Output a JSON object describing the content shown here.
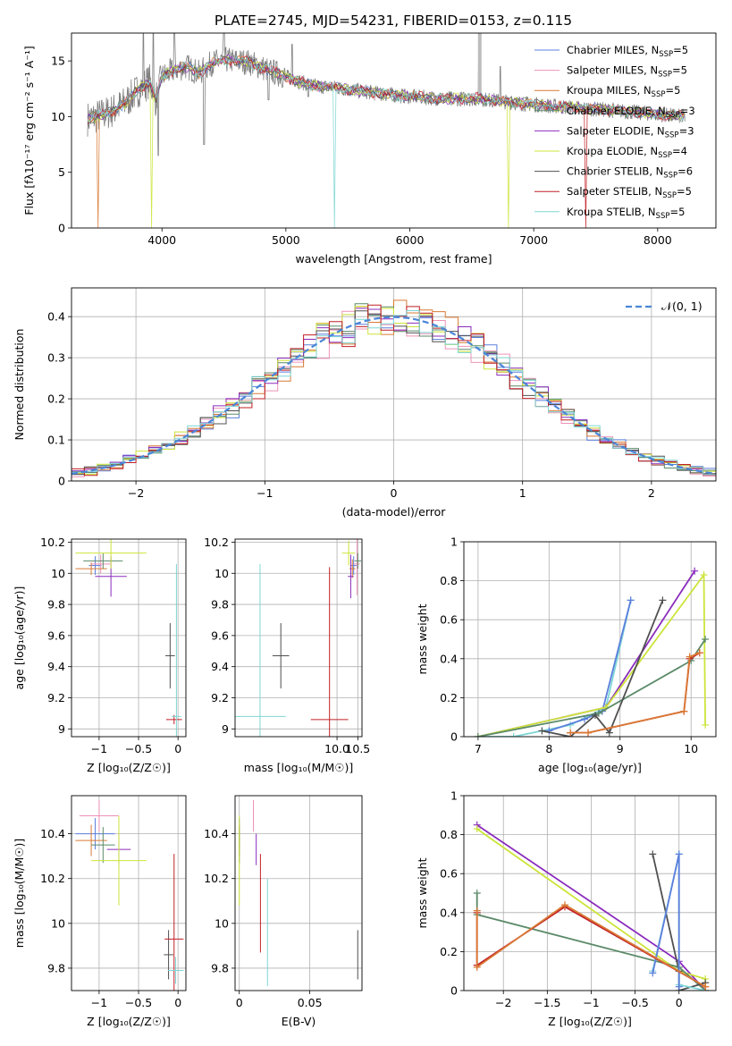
{
  "figure_title": "PLATE=2745, MJD=54231, FIBERID=0153, z=0.115",
  "colors": {
    "grey": "#808080",
    "lightgrey": "#bdbdbd",
    "chabrier_miles": "#5b7fdc",
    "salpeter_miles": "#ee92b8",
    "kroupa_miles": "#d97a35",
    "chabrier_elodie": "#5b8a68",
    "salpeter_elodie": "#8b2cbd",
    "kroupa_elodie": "#cde43a",
    "chabrier_stelib": "#505050",
    "salpeter_stelib": "#c21f26",
    "kroupa_stelib": "#7fd6d6",
    "normal": "#4a86d8"
  },
  "chart_data": [
    {
      "type": "line",
      "id": "spectrum",
      "title": "PLATE=2745, MJD=54231, FIBERID=0153, z=0.115",
      "xlabel": "wavelength [Angstrom, rest frame]",
      "ylabel": "Flux [fλ10⁻¹⁷ erg cm⁻² s⁻¹ A⁻¹]",
      "xlim": [
        3270,
        8470
      ],
      "ylim": [
        0,
        17.5
      ],
      "xticks": [
        4000,
        5000,
        6000,
        7000,
        8000
      ],
      "yticks": [
        0,
        5,
        10,
        15
      ],
      "grid": false,
      "legend_position": "top-right",
      "series": [
        {
          "name": "Chabrier MILES, N_SSP=5",
          "color": "chabrier_miles"
        },
        {
          "name": "Salpeter MILES, N_SSP=5",
          "color": "salpeter_miles"
        },
        {
          "name": "Kroupa MILES, N_SSP=5",
          "color": "kroupa_miles"
        },
        {
          "name": "Chabrier ELODIE, N_SSP=3",
          "color": "chabrier_elodie"
        },
        {
          "name": "Salpeter ELODIE, N_SSP=3",
          "color": "salpeter_elodie"
        },
        {
          "name": "Kroupa ELODIE, N_SSP=4",
          "color": "kroupa_elodie"
        },
        {
          "name": "Chabrier STELIB, N_SSP=6",
          "color": "chabrier_stelib"
        },
        {
          "name": "Salpeter STELIB, N_SSP=5",
          "color": "salpeter_stelib"
        },
        {
          "name": "Kroupa STELIB, N_SSP=5",
          "color": "kroupa_stelib"
        }
      ],
      "model_continuum": [
        [
          3400,
          9.8
        ],
        [
          3500,
          10.1
        ],
        [
          3600,
          10.5
        ],
        [
          3700,
          11.2
        ],
        [
          3800,
          12.3
        ],
        [
          3900,
          13.2
        ],
        [
          3950,
          11.5
        ],
        [
          4000,
          13.6
        ],
        [
          4100,
          14.2
        ],
        [
          4200,
          14.5
        ],
        [
          4300,
          13.9
        ],
        [
          4400,
          14.8
        ],
        [
          4500,
          15.1
        ],
        [
          4700,
          14.9
        ],
        [
          4850,
          14.2
        ],
        [
          5000,
          13.6
        ],
        [
          5200,
          12.8
        ],
        [
          5400,
          12.6
        ],
        [
          5600,
          12.3
        ],
        [
          5800,
          12.0
        ],
        [
          6000,
          11.8
        ],
        [
          6300,
          11.6
        ],
        [
          6560,
          11.6
        ],
        [
          6800,
          11.3
        ],
        [
          7200,
          10.9
        ],
        [
          7600,
          10.6
        ],
        [
          8000,
          10.2
        ],
        [
          8220,
          10.0
        ]
      ],
      "data_dips": [
        [
          3930,
          3.0
        ],
        [
          3970,
          6.5
        ],
        [
          4340,
          7.5
        ],
        [
          4860,
          11.5
        ],
        [
          5180,
          11.8
        ]
      ],
      "data_spikes": [
        [
          3850,
          17.5
        ],
        [
          3930,
          17.5
        ],
        [
          4100,
          17.5
        ],
        [
          4500,
          17.5
        ],
        [
          5050,
          16.5
        ],
        [
          6560,
          17.5
        ],
        [
          6730,
          14.5
        ]
      ],
      "model_drops": [
        [
          3480,
          "kroupa_miles"
        ],
        [
          3920,
          "kroupa_elodie"
        ],
        [
          5390,
          "kroupa_stelib"
        ],
        [
          6800,
          "kroupa_elodie"
        ],
        [
          7420,
          "salpeter_stelib"
        ]
      ]
    },
    {
      "type": "line",
      "id": "residuals",
      "xlabel": "(data-model)/error",
      "ylabel": "Normed distribution",
      "xlim": [
        -2.5,
        2.5
      ],
      "ylim": [
        0,
        0.47
      ],
      "xticks": [
        -2,
        -1,
        0,
        1,
        2
      ],
      "yticks": [
        0.0,
        0.1,
        0.2,
        0.3,
        0.4
      ],
      "grid": true,
      "legend_position": "top-right",
      "legend_label": "𝒩(0, 1)",
      "bins": 50,
      "jitter_colors": [
        "chabrier_miles",
        "salpeter_miles",
        "kroupa_miles",
        "chabrier_elodie",
        "salpeter_elodie",
        "kroupa_elodie",
        "chabrier_stelib",
        "salpeter_stelib",
        "kroupa_stelib"
      ]
    },
    {
      "type": "scatter",
      "id": "z-vs-age",
      "xlabel": "Z [log₁₀(Z/Z☉)]",
      "ylabel": "age [log₁₀(age/yr)]",
      "xlim": [
        -1.35,
        0.1
      ],
      "ylim": [
        8.95,
        10.22
      ],
      "xticks": [
        -1.0,
        -0.5,
        0.0
      ],
      "yticks": [
        9.0,
        9.2,
        9.4,
        9.6,
        9.8,
        10.0,
        10.2
      ],
      "grid": true,
      "points": [
        {
          "color": "chabrier_miles",
          "x": -1.05,
          "y": 10.05,
          "xerr": 0.08,
          "yerr": 0.06
        },
        {
          "color": "salpeter_miles",
          "x": -0.98,
          "y": 10.06,
          "xerr": 0.12,
          "yerr": 0.06
        },
        {
          "color": "kroupa_miles",
          "x": -1.1,
          "y": 10.03,
          "xerr": 0.2,
          "yerr": 0.04
        },
        {
          "color": "chabrier_elodie",
          "x": -0.95,
          "y": 10.08,
          "xerr": 0.25,
          "yerr": 0.05
        },
        {
          "color": "salpeter_elodie",
          "x": -0.85,
          "y": 9.98,
          "xerr": 0.2,
          "yerr": 0.13
        },
        {
          "color": "kroupa_elodie",
          "x": -0.85,
          "y": 10.13,
          "xerr": 0.45,
          "yerr": 0.1
        },
        {
          "color": "chabrier_stelib",
          "x": -0.1,
          "y": 9.47,
          "xerr": 0.06,
          "yerr": 0.21
        },
        {
          "color": "salpeter_stelib",
          "x": -0.05,
          "y": 9.06,
          "xerr": 0.1,
          "yerr": 0.03
        },
        {
          "color": "kroupa_stelib",
          "x": -0.02,
          "y": 9.08,
          "xerr": 0.06,
          "yerr": 0.98
        }
      ]
    },
    {
      "type": "scatter",
      "id": "mass-vs-age",
      "xlabel": "mass [log₁₀(M/M☉)]",
      "ylabel": "",
      "xlim": [
        7.55,
        10.6
      ],
      "ylim": [
        8.95,
        10.22
      ],
      "xticks": [
        7.5,
        8.0,
        8.5,
        9.0,
        9.5,
        10.0,
        10.5
      ],
      "yticks": [
        9.0,
        9.2,
        9.4,
        9.6,
        9.8,
        10.0,
        10.2
      ],
      "xtick_labels": [
        "",
        "",
        "",
        "",
        "",
        "",
        ""
      ],
      "visible_xticks": [
        10.0,
        10.5
      ],
      "visible_xtick_labels": [
        "10.0",
        "10.5"
      ],
      "grid": true,
      "points": [
        {
          "color": "chabrier_miles",
          "x": 10.4,
          "y": 10.05,
          "xerr": 0.07,
          "yerr": 0.06
        },
        {
          "color": "salpeter_miles",
          "x": 10.48,
          "y": 10.06,
          "xerr": 0.07,
          "yerr": 0.2
        },
        {
          "color": "kroupa_miles",
          "x": 10.37,
          "y": 10.03,
          "xerr": 0.07,
          "yerr": 0.06
        },
        {
          "color": "chabrier_elodie",
          "x": 10.5,
          "y": 10.08,
          "xerr": 0.08,
          "yerr": 0.05
        },
        {
          "color": "salpeter_elodie",
          "x": 10.33,
          "y": 9.98,
          "xerr": 0.07,
          "yerr": 0.14
        },
        {
          "color": "kroupa_elodie",
          "x": 10.28,
          "y": 10.13,
          "xerr": 0.16,
          "yerr": 0.08
        },
        {
          "color": "chabrier_stelib",
          "x": 8.65,
          "y": 9.47,
          "xerr": 0.2,
          "yerr": 0.21
        },
        {
          "color": "salpeter_stelib",
          "x": 9.82,
          "y": 9.06,
          "xerr": 0.45,
          "yerr": 0.98
        },
        {
          "color": "kroupa_stelib",
          "x": 8.15,
          "y": 9.08,
          "xerr": 0.62,
          "yerr": 0.98
        }
      ]
    },
    {
      "type": "line",
      "id": "age-vs-massweight",
      "xlabel": "age [log₁₀(age/yr)]",
      "ylabel": "mass weight",
      "xlim": [
        6.8,
        10.35
      ],
      "ylim": [
        0,
        1.0
      ],
      "xticks": [
        7,
        8,
        9,
        10
      ],
      "yticks": [
        0.0,
        0.2,
        0.4,
        0.6,
        0.8,
        1.0
      ],
      "grid": true,
      "series": [
        {
          "color": "kroupa_stelib",
          "points": [
            [
              7.0,
              0.0
            ],
            [
              7.5,
              0.0
            ],
            [
              8.3,
              0.06
            ],
            [
              8.8,
              0.15
            ],
            [
              9.15,
              0.7
            ]
          ]
        },
        {
          "color": "chabrier_miles",
          "points": [
            [
              8.0,
              0.03
            ],
            [
              8.5,
              0.09
            ],
            [
              8.75,
              0.13
            ],
            [
              9.15,
              0.7
            ]
          ]
        },
        {
          "color": "salpeter_elodie",
          "points": [
            [
              7.0,
              0.0
            ],
            [
              8.8,
              0.15
            ],
            [
              10.05,
              0.85
            ]
          ]
        },
        {
          "color": "kroupa_elodie",
          "points": [
            [
              7.0,
              0.0
            ],
            [
              8.8,
              0.15
            ],
            [
              10.18,
              0.83
            ],
            [
              10.2,
              0.06
            ]
          ]
        },
        {
          "color": "chabrier_elodie",
          "points": [
            [
              7.0,
              0.0
            ],
            [
              8.7,
              0.12
            ],
            [
              10.0,
              0.39
            ],
            [
              10.2,
              0.5
            ]
          ]
        },
        {
          "color": "chabrier_stelib",
          "points": [
            [
              7.9,
              0.03
            ],
            [
              8.3,
              0.0
            ],
            [
              8.65,
              0.11
            ],
            [
              8.85,
              0.02
            ],
            [
              9.6,
              0.7
            ]
          ]
        },
        {
          "color": "salpeter_stelib",
          "points": [
            [
              8.3,
              0.02
            ],
            [
              8.55,
              0.02
            ],
            [
              9.9,
              0.13
            ],
            [
              9.98,
              0.4
            ],
            [
              10.12,
              0.43
            ]
          ]
        },
        {
          "color": "kroupa_miles",
          "points": [
            [
              8.3,
              0.02
            ],
            [
              8.55,
              0.02
            ],
            [
              9.9,
              0.13
            ],
            [
              9.98,
              0.41
            ],
            [
              10.12,
              0.43
            ]
          ]
        }
      ]
    },
    {
      "type": "scatter",
      "id": "z-vs-mass",
      "xlabel": "Z [log₁₀(Z/Z☉)]",
      "ylabel": "mass [log₁₀(M/M☉)]",
      "xlim": [
        -1.35,
        0.1
      ],
      "ylim": [
        9.7,
        10.57
      ],
      "xticks": [
        -1.0,
        -0.5,
        0.0
      ],
      "yticks": [
        9.8,
        10.0,
        10.2,
        10.4
      ],
      "grid": true,
      "points": [
        {
          "color": "chabrier_miles",
          "x": -1.05,
          "y": 10.4,
          "xerr": 0.25,
          "yerr": 0.07
        },
        {
          "color": "salpeter_miles",
          "x": -1.0,
          "y": 10.48,
          "xerr": 0.25,
          "yerr": 0.07
        },
        {
          "color": "kroupa_miles",
          "x": -1.1,
          "y": 10.37,
          "xerr": 0.2,
          "yerr": 0.07
        },
        {
          "color": "chabrier_elodie",
          "x": -0.95,
          "y": 10.35,
          "xerr": 0.15,
          "yerr": 0.08
        },
        {
          "color": "salpeter_elodie",
          "x": -0.75,
          "y": 10.33,
          "xerr": 0.15,
          "yerr": 0.07
        },
        {
          "color": "kroupa_elodie",
          "x": -0.75,
          "y": 10.28,
          "xerr": 0.35,
          "yerr": 0.2
        },
        {
          "color": "chabrier_stelib",
          "x": -0.12,
          "y": 9.86,
          "xerr": 0.06,
          "yerr": 0.11
        },
        {
          "color": "salpeter_stelib",
          "x": -0.05,
          "y": 9.93,
          "xerr": 0.12,
          "yerr": 0.38
        },
        {
          "color": "kroupa_stelib",
          "x": -0.03,
          "y": 9.79,
          "xerr": 0.1,
          "yerr": 0.06
        }
      ]
    },
    {
      "type": "scatter",
      "id": "ebv-vs-mass",
      "xlabel": "E(B-V)",
      "ylabel": "",
      "xlim": [
        -0.003,
        0.087
      ],
      "ylim": [
        9.7,
        10.57
      ],
      "xticks": [
        0.0,
        0.05
      ],
      "yticks": [
        9.8,
        10.0,
        10.2,
        10.4
      ],
      "grid": true,
      "points": [
        {
          "color": "chabrier_miles",
          "x": 0.0,
          "y": 10.4,
          "xerr": 0,
          "yerr": 0.07
        },
        {
          "color": "salpeter_miles",
          "x": 0.01,
          "y": 10.48,
          "xerr": 0,
          "yerr": 0.07
        },
        {
          "color": "kroupa_miles",
          "x": 0.0,
          "y": 10.37,
          "xerr": 0,
          "yerr": 0.07
        },
        {
          "color": "chabrier_elodie",
          "x": 0.0,
          "y": 10.35,
          "xerr": 0,
          "yerr": 0.08
        },
        {
          "color": "salpeter_elodie",
          "x": 0.012,
          "y": 10.33,
          "xerr": 0,
          "yerr": 0.07
        },
        {
          "color": "kroupa_elodie",
          "x": 0.0,
          "y": 10.28,
          "xerr": 0,
          "yerr": 0.2
        },
        {
          "color": "chabrier_stelib",
          "x": 0.084,
          "y": 9.86,
          "xerr": 0,
          "yerr": 0.11
        },
        {
          "color": "salpeter_stelib",
          "x": 0.015,
          "y": 10.09,
          "xerr": 0,
          "yerr": 0.22
        },
        {
          "color": "kroupa_stelib",
          "x": 0.02,
          "y": 9.96,
          "xerr": 0,
          "yerr": 0.24
        }
      ]
    },
    {
      "type": "line",
      "id": "z-vs-massweight",
      "xlabel": "Z [log₁₀(Z/Z☉)]",
      "ylabel": "mass weight",
      "xlim": [
        -2.45,
        0.42
      ],
      "ylim": [
        0,
        1.0
      ],
      "xticks": [
        -2.0,
        -1.5,
        -1.0,
        -0.5,
        0.0
      ],
      "yticks": [
        0.0,
        0.2,
        0.4,
        0.6,
        0.8,
        1.0
      ],
      "grid": true,
      "series": [
        {
          "color": "salpeter_elodie",
          "points": [
            [
              -2.3,
              0.85
            ],
            [
              0.0,
              0.15
            ],
            [
              0.3,
              0.0
            ]
          ]
        },
        {
          "color": "kroupa_elodie",
          "points": [
            [
              -2.3,
              0.83
            ],
            [
              0.0,
              0.1
            ],
            [
              0.3,
              0.06
            ],
            [
              0.3,
              0.0
            ]
          ]
        },
        {
          "color": "chabrier_elodie",
          "points": [
            [
              -2.3,
              0.5
            ],
            [
              -2.3,
              0.39
            ],
            [
              0.0,
              0.12
            ],
            [
              0.3,
              0.0
            ]
          ]
        },
        {
          "color": "chabrier_stelib",
          "points": [
            [
              -0.3,
              0.7
            ],
            [
              0.0,
              0.1
            ],
            [
              0.0,
              0.0
            ],
            [
              0.3,
              0.04
            ]
          ]
        },
        {
          "color": "kroupa_stelib",
          "points": [
            [
              -0.3,
              0.1
            ],
            [
              0.0,
              0.7
            ],
            [
              0.0,
              0.03
            ],
            [
              0.3,
              0.0
            ]
          ]
        },
        {
          "color": "chabrier_miles",
          "points": [
            [
              -0.3,
              0.09
            ],
            [
              0.0,
              0.7
            ],
            [
              0.0,
              0.02
            ]
          ]
        },
        {
          "color": "salpeter_stelib",
          "points": [
            [
              -2.3,
              0.4
            ],
            [
              -2.3,
              0.13
            ],
            [
              -1.3,
              0.43
            ],
            [
              0.3,
              0.02
            ]
          ]
        },
        {
          "color": "kroupa_miles",
          "points": [
            [
              -2.3,
              0.41
            ],
            [
              -2.3,
              0.12
            ],
            [
              -1.3,
              0.44
            ],
            [
              0.3,
              0.02
            ]
          ]
        }
      ]
    }
  ]
}
